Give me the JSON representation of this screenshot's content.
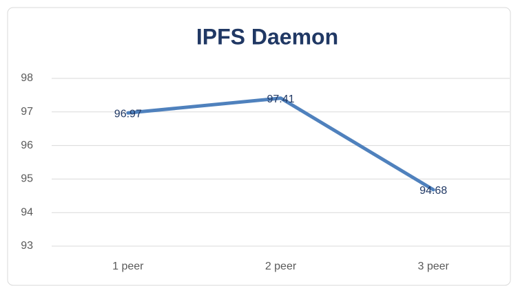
{
  "chart_data": {
    "type": "line",
    "title": "IPFS Daemon",
    "categories": [
      "1 peer",
      "2 peer",
      "3 peer"
    ],
    "values": [
      96.97,
      97.41,
      94.68
    ],
    "color": "#4f81bd",
    "ylim": [
      93,
      98
    ],
    "yticks": [
      93,
      94,
      95,
      96,
      97,
      98
    ],
    "grid": true,
    "data_labels": true
  }
}
